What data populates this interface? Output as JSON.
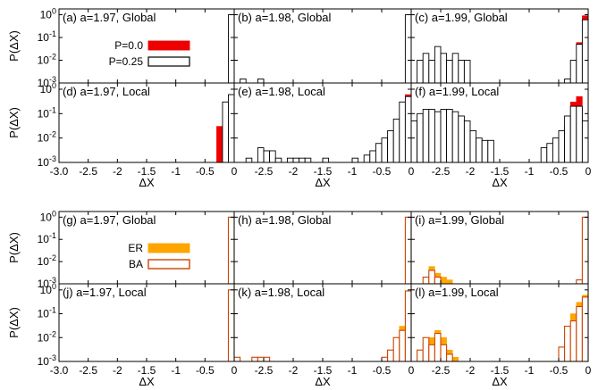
{
  "chart_data": {
    "type": "bar",
    "y_label": "P(ΔX)",
    "x_label": "ΔX",
    "y_ticks": [
      {
        "value": 1,
        "base": "10",
        "exp": "0"
      },
      {
        "value": 0.1,
        "base": "10",
        "exp": "-1"
      },
      {
        "value": 0.01,
        "base": "10",
        "exp": "-2"
      },
      {
        "value": 0.001,
        "base": "10",
        "exp": "-3"
      }
    ],
    "x_tick_labels": [
      [
        "-3.0",
        "-2.5",
        "-2",
        "-1.5",
        "-1",
        "-0.5",
        "0"
      ],
      [
        "-2.5",
        "-2",
        "-1.5",
        "-1",
        "-0.5",
        "0"
      ],
      [
        "-2.5",
        "-2",
        "-1.5",
        "-1",
        "-0.5",
        "0"
      ]
    ],
    "x_tick_values": [
      [
        -3.0,
        -2.5,
        -2.0,
        -1.5,
        -1.0,
        -0.5,
        0.0
      ],
      [
        -2.5,
        -2.0,
        -1.5,
        -1.0,
        -0.5,
        0.0
      ],
      [
        -2.5,
        -2.0,
        -1.5,
        -1.0,
        -0.5,
        0.0
      ]
    ],
    "xlim": [
      -3.0,
      0.0
    ],
    "ylim": [
      0.001,
      1.8
    ],
    "y_scale": "log",
    "bin_width": 0.1,
    "colors": {
      "red": "#ee0000",
      "white": "#ffffff",
      "orange": "#ffa500",
      "orange_edge": "#cc4400"
    },
    "groups": [
      {
        "legend": [
          {
            "label": "P=0.0",
            "style": "red"
          },
          {
            "label": "P=0.25",
            "style": "white"
          }
        ],
        "panels": [
          {
            "label": "(a) a=1.97, Global",
            "series": [
              {
                "style": "red",
                "bars": [
                  [
                    -0.05,
                    1.0
                  ]
                ]
              },
              {
                "style": "white",
                "bars": [
                  [
                    -0.05,
                    1.0
                  ]
                ]
              }
            ]
          },
          {
            "label": "(b) a=1.98, Global",
            "series": [
              {
                "style": "red",
                "bars": [
                  [
                    -0.05,
                    1.0
                  ]
                ]
              },
              {
                "style": "white",
                "bars": [
                  [
                    -2.85,
                    0.0015
                  ],
                  [
                    -2.55,
                    0.0015
                  ],
                  [
                    -0.05,
                    1.0
                  ]
                ]
              }
            ]
          },
          {
            "label": "(c) a=1.99, Global",
            "series": [
              {
                "style": "red",
                "bars": [
                  [
                    -0.25,
                    0.0015
                  ],
                  [
                    -0.15,
                    0.06
                  ],
                  [
                    -0.05,
                    0.9
                  ]
                ]
              },
              {
                "style": "white",
                "bars": [
                  [
                    -2.85,
                    0.01
                  ],
                  [
                    -2.75,
                    0.02
                  ],
                  [
                    -2.65,
                    0.01
                  ],
                  [
                    -2.55,
                    0.04
                  ],
                  [
                    -2.45,
                    0.02
                  ],
                  [
                    -2.35,
                    0.01
                  ],
                  [
                    -2.25,
                    0.02
                  ],
                  [
                    -2.15,
                    0.01
                  ],
                  [
                    -2.05,
                    0.01
                  ],
                  [
                    -0.35,
                    0.0015
                  ],
                  [
                    -0.25,
                    0.01
                  ],
                  [
                    -0.15,
                    0.05
                  ],
                  [
                    -0.05,
                    0.6
                  ]
                ]
              }
            ]
          },
          {
            "label": "(d) a=1.97, Local",
            "series": [
              {
                "style": "red",
                "bars": [
                  [
                    -0.25,
                    0.03
                  ],
                  [
                    -0.15,
                    0.3
                  ],
                  [
                    -0.05,
                    0.6
                  ]
                ]
              },
              {
                "style": "white",
                "bars": [
                  [
                    -0.15,
                    0.3
                  ],
                  [
                    -0.05,
                    0.6
                  ]
                ]
              }
            ]
          },
          {
            "label": "(e) a=1.98, Local",
            "series": [
              {
                "style": "red",
                "bars": [
                  [
                    -0.25,
                    0.02
                  ],
                  [
                    -0.15,
                    0.3
                  ],
                  [
                    -0.05,
                    0.6
                  ]
                ]
              },
              {
                "style": "white",
                "bars": [
                  [
                    -2.75,
                    0.0015
                  ],
                  [
                    -2.55,
                    0.004
                  ],
                  [
                    -2.45,
                    0.003
                  ],
                  [
                    -2.35,
                    0.003
                  ],
                  [
                    -2.25,
                    0.0015
                  ],
                  [
                    -2.05,
                    0.0015
                  ],
                  [
                    -1.95,
                    0.0015
                  ],
                  [
                    -1.85,
                    0.0015
                  ],
                  [
                    -1.75,
                    0.0015
                  ],
                  [
                    -1.45,
                    0.0015
                  ],
                  [
                    -0.95,
                    0.0015
                  ],
                  [
                    -0.75,
                    0.002
                  ],
                  [
                    -0.65,
                    0.003
                  ],
                  [
                    -0.55,
                    0.006
                  ],
                  [
                    -0.45,
                    0.01
                  ],
                  [
                    -0.35,
                    0.02
                  ],
                  [
                    -0.25,
                    0.06
                  ],
                  [
                    -0.15,
                    0.3
                  ],
                  [
                    -0.05,
                    0.5
                  ]
                ]
              }
            ]
          },
          {
            "label": "(f) a=1.99, Local",
            "series": [
              {
                "style": "red",
                "bars": [
                  [
                    -0.45,
                    0.006
                  ],
                  [
                    -0.35,
                    0.03
                  ],
                  [
                    -0.25,
                    0.3
                  ],
                  [
                    -0.15,
                    0.5
                  ],
                  [
                    -0.05,
                    0.03
                  ]
                ]
              },
              {
                "style": "white",
                "bars": [
                  [
                    -3.05,
                    0.02
                  ],
                  [
                    -2.95,
                    0.05
                  ],
                  [
                    -2.85,
                    0.1
                  ],
                  [
                    -2.75,
                    0.15
                  ],
                  [
                    -2.65,
                    0.15
                  ],
                  [
                    -2.55,
                    0.12
                  ],
                  [
                    -2.45,
                    0.15
                  ],
                  [
                    -2.35,
                    0.15
                  ],
                  [
                    -2.25,
                    0.12
                  ],
                  [
                    -2.15,
                    0.08
                  ],
                  [
                    -2.05,
                    0.05
                  ],
                  [
                    -1.95,
                    0.02
                  ],
                  [
                    -1.85,
                    0.01
                  ],
                  [
                    -1.75,
                    0.008
                  ],
                  [
                    -1.65,
                    0.008
                  ],
                  [
                    -0.75,
                    0.004
                  ],
                  [
                    -0.65,
                    0.006
                  ],
                  [
                    -0.55,
                    0.01
                  ],
                  [
                    -0.45,
                    0.02
                  ],
                  [
                    -0.35,
                    0.08
                  ],
                  [
                    -0.25,
                    0.2
                  ],
                  [
                    -0.15,
                    0.2
                  ],
                  [
                    -0.05,
                    0.05
                  ]
                ]
              }
            ]
          }
        ]
      },
      {
        "legend": [
          {
            "label": "ER",
            "style": "orange"
          },
          {
            "label": "BA",
            "style": "white_orange"
          }
        ],
        "panels": [
          {
            "label": "(g) a=1.97, Global",
            "series": [
              {
                "style": "orange",
                "bars": [
                  [
                    -0.05,
                    1.0
                  ]
                ]
              },
              {
                "style": "white_orange",
                "bars": [
                  [
                    -0.05,
                    1.0
                  ]
                ]
              }
            ]
          },
          {
            "label": "(h) a=1.98, Global",
            "series": [
              {
                "style": "orange",
                "bars": [
                  [
                    -0.05,
                    1.0
                  ]
                ]
              },
              {
                "style": "white_orange",
                "bars": [
                  [
                    -0.05,
                    1.0
                  ]
                ]
              }
            ]
          },
          {
            "label": "(i) a=1.99, Global",
            "series": [
              {
                "style": "orange",
                "bars": [
                  [
                    -2.65,
                    0.006
                  ],
                  [
                    -2.55,
                    0.003
                  ],
                  [
                    -2.45,
                    0.002
                  ],
                  [
                    -2.35,
                    0.0015
                  ],
                  [
                    -0.05,
                    1.0
                  ]
                ]
              },
              {
                "style": "white_orange",
                "bars": [
                  [
                    -2.75,
                    0.002
                  ],
                  [
                    -2.65,
                    0.004
                  ],
                  [
                    -2.55,
                    0.002
                  ],
                  [
                    -0.15,
                    0.0015
                  ],
                  [
                    -0.05,
                    1.0
                  ]
                ]
              }
            ]
          },
          {
            "label": "(j) a=1.97, Local",
            "series": [
              {
                "style": "orange",
                "bars": [
                  [
                    -0.05,
                    1.0
                  ]
                ]
              },
              {
                "style": "white_orange",
                "bars": [
                  [
                    -0.05,
                    1.0
                  ]
                ]
              }
            ]
          },
          {
            "label": "(k) a=1.98, Local",
            "series": [
              {
                "style": "orange",
                "bars": [
                  [
                    -0.45,
                    0.0015
                  ],
                  [
                    -0.35,
                    0.003
                  ],
                  [
                    -0.25,
                    0.01
                  ],
                  [
                    -0.15,
                    0.03
                  ],
                  [
                    -0.05,
                    0.9
                  ]
                ]
              },
              {
                "style": "white_orange",
                "bars": [
                  [
                    -2.95,
                    0.0015
                  ],
                  [
                    -2.65,
                    0.0015
                  ],
                  [
                    -2.55,
                    0.0015
                  ],
                  [
                    -2.45,
                    0.0015
                  ],
                  [
                    -0.45,
                    0.0015
                  ],
                  [
                    -0.35,
                    0.003
                  ],
                  [
                    -0.25,
                    0.01
                  ],
                  [
                    -0.15,
                    0.02
                  ],
                  [
                    -0.05,
                    0.9
                  ]
                ]
              }
            ]
          },
          {
            "label": "(l) a=1.99, Local",
            "series": [
              {
                "style": "orange",
                "bars": [
                  [
                    -2.75,
                    0.006
                  ],
                  [
                    -2.65,
                    0.01
                  ],
                  [
                    -2.55,
                    0.02
                  ],
                  [
                    -2.45,
                    0.01
                  ],
                  [
                    -2.35,
                    0.003
                  ],
                  [
                    -2.25,
                    0.0015
                  ],
                  [
                    -0.35,
                    0.02
                  ],
                  [
                    -0.25,
                    0.1
                  ],
                  [
                    -0.15,
                    0.3
                  ],
                  [
                    -0.05,
                    0.6
                  ]
                ]
              },
              {
                "style": "white_orange",
                "bars": [
                  [
                    -2.85,
                    0.003
                  ],
                  [
                    -2.75,
                    0.01
                  ],
                  [
                    -2.65,
                    0.005
                  ],
                  [
                    -2.55,
                    0.015
                  ],
                  [
                    -2.45,
                    0.005
                  ],
                  [
                    -2.35,
                    0.002
                  ],
                  [
                    -0.45,
                    0.004
                  ],
                  [
                    -0.35,
                    0.03
                  ],
                  [
                    -0.25,
                    0.05
                  ],
                  [
                    -0.15,
                    0.2
                  ],
                  [
                    -0.05,
                    0.5
                  ]
                ]
              }
            ]
          }
        ]
      }
    ]
  }
}
